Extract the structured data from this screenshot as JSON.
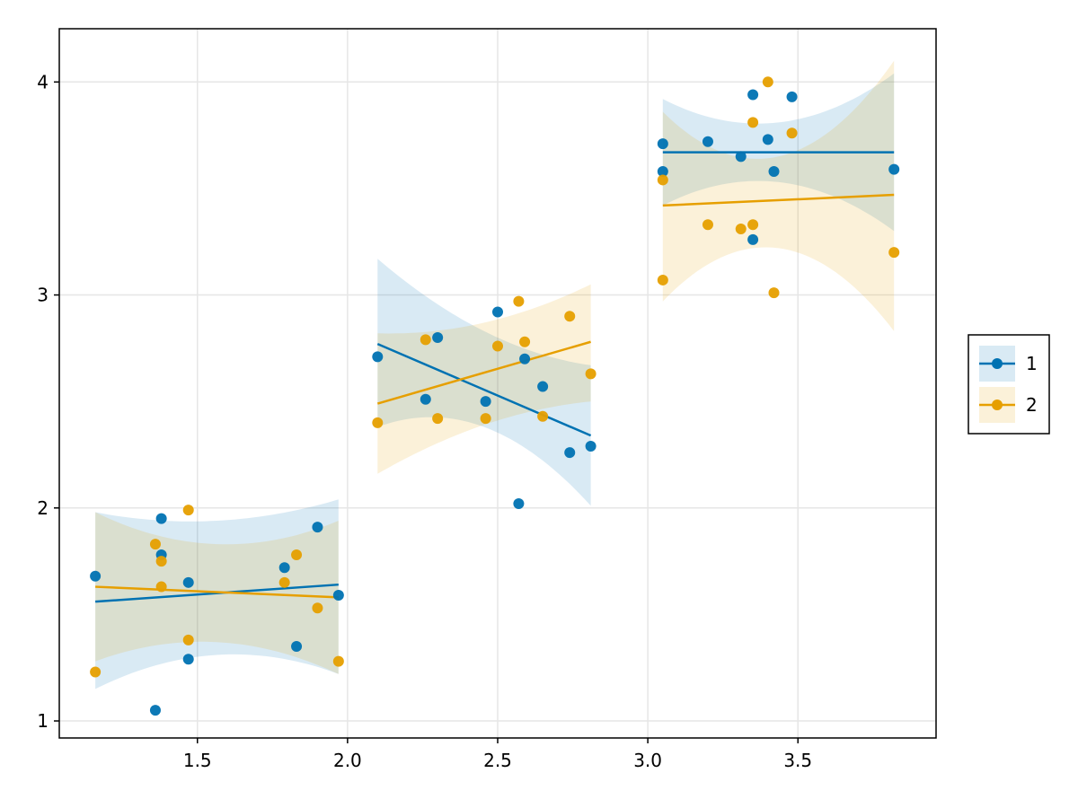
{
  "chart_data": {
    "type": "scatter",
    "title": "",
    "xlabel": "",
    "ylabel": "",
    "xlim": [
      1.04,
      3.96
    ],
    "ylim": [
      0.92,
      4.25
    ],
    "xticks": [
      1.5,
      2.0,
      2.5,
      3.0,
      3.5
    ],
    "xtick_labels": [
      "1.5",
      "2.0",
      "2.5",
      "3.0",
      "3.5"
    ],
    "yticks": [
      1,
      2,
      3,
      4
    ],
    "ytick_labels": [
      "1",
      "2",
      "3",
      "4"
    ],
    "grid": true,
    "legend_position": "right",
    "series": [
      {
        "name": "1",
        "color": "#0072b2",
        "points": [
          [
            1.16,
            1.68
          ],
          [
            1.36,
            1.05
          ],
          [
            1.38,
            1.95
          ],
          [
            1.38,
            1.78
          ],
          [
            1.47,
            1.29
          ],
          [
            1.47,
            1.65
          ],
          [
            1.79,
            1.72
          ],
          [
            1.83,
            1.35
          ],
          [
            1.9,
            1.91
          ],
          [
            1.97,
            1.59
          ],
          [
            2.1,
            2.71
          ],
          [
            2.26,
            2.51
          ],
          [
            2.3,
            2.8
          ],
          [
            2.46,
            2.5
          ],
          [
            2.5,
            2.92
          ],
          [
            2.57,
            2.02
          ],
          [
            2.59,
            2.7
          ],
          [
            2.65,
            2.57
          ],
          [
            2.74,
            2.26
          ],
          [
            2.81,
            2.29
          ],
          [
            3.05,
            3.71
          ],
          [
            3.05,
            3.58
          ],
          [
            3.2,
            3.72
          ],
          [
            3.31,
            3.65
          ],
          [
            3.35,
            3.94
          ],
          [
            3.35,
            3.26
          ],
          [
            3.4,
            3.73
          ],
          [
            3.42,
            3.58
          ],
          [
            3.48,
            3.93
          ],
          [
            3.82,
            3.59
          ]
        ],
        "fits": [
          {
            "x": [
              1.16,
              1.97
            ],
            "y": [
              1.56,
              1.64
            ],
            "band_lower": [
              1.15,
              1.31,
              1.22
            ],
            "band_upper": [
              1.98,
              1.94,
              2.04
            ]
          },
          {
            "x": [
              2.1,
              2.81
            ],
            "y": [
              2.77,
              2.34
            ],
            "band_lower": [
              2.38,
              2.38,
              2.01
            ],
            "band_upper": [
              3.17,
              2.83,
              2.67
            ]
          },
          {
            "x": [
              3.05,
              3.82
            ],
            "y": [
              3.67,
              3.67
            ],
            "band_lower": [
              3.42,
              3.53,
              3.3
            ],
            "band_upper": [
              3.92,
              3.81,
              4.04
            ]
          }
        ]
      },
      {
        "name": "2",
        "color": "#e69f00",
        "points": [
          [
            1.16,
            1.23
          ],
          [
            1.36,
            1.83
          ],
          [
            1.38,
            1.75
          ],
          [
            1.38,
            1.63
          ],
          [
            1.47,
            1.99
          ],
          [
            1.47,
            1.38
          ],
          [
            1.79,
            1.65
          ],
          [
            1.83,
            1.78
          ],
          [
            1.9,
            1.53
          ],
          [
            1.97,
            1.28
          ],
          [
            2.1,
            2.4
          ],
          [
            2.26,
            2.79
          ],
          [
            2.3,
            2.42
          ],
          [
            2.46,
            2.42
          ],
          [
            2.5,
            2.76
          ],
          [
            2.57,
            2.97
          ],
          [
            2.59,
            2.78
          ],
          [
            2.65,
            2.43
          ],
          [
            2.74,
            2.9
          ],
          [
            2.81,
            2.63
          ],
          [
            3.05,
            3.07
          ],
          [
            3.05,
            3.54
          ],
          [
            3.2,
            3.33
          ],
          [
            3.31,
            3.31
          ],
          [
            3.35,
            3.81
          ],
          [
            3.35,
            3.33
          ],
          [
            3.4,
            4.0
          ],
          [
            3.42,
            3.01
          ],
          [
            3.48,
            3.76
          ],
          [
            3.82,
            3.2
          ]
        ],
        "fits": [
          {
            "x": [
              1.16,
              1.97
            ],
            "y": [
              1.63,
              1.58
            ],
            "band_lower": [
              1.28,
              1.37,
              1.22
            ],
            "band_upper": [
              1.98,
              1.83,
              1.94
            ]
          },
          {
            "x": [
              2.1,
              2.81
            ],
            "y": [
              2.49,
              2.78
            ],
            "band_lower": [
              2.16,
              2.39,
              2.5
            ],
            "band_upper": [
              2.82,
              2.87,
              3.05
            ]
          },
          {
            "x": [
              3.05,
              3.82
            ],
            "y": [
              3.42,
              3.47
            ],
            "band_lower": [
              2.97,
              3.22,
              2.83
            ],
            "band_upper": [
              3.86,
              3.65,
              4.1
            ]
          }
        ]
      }
    ]
  }
}
